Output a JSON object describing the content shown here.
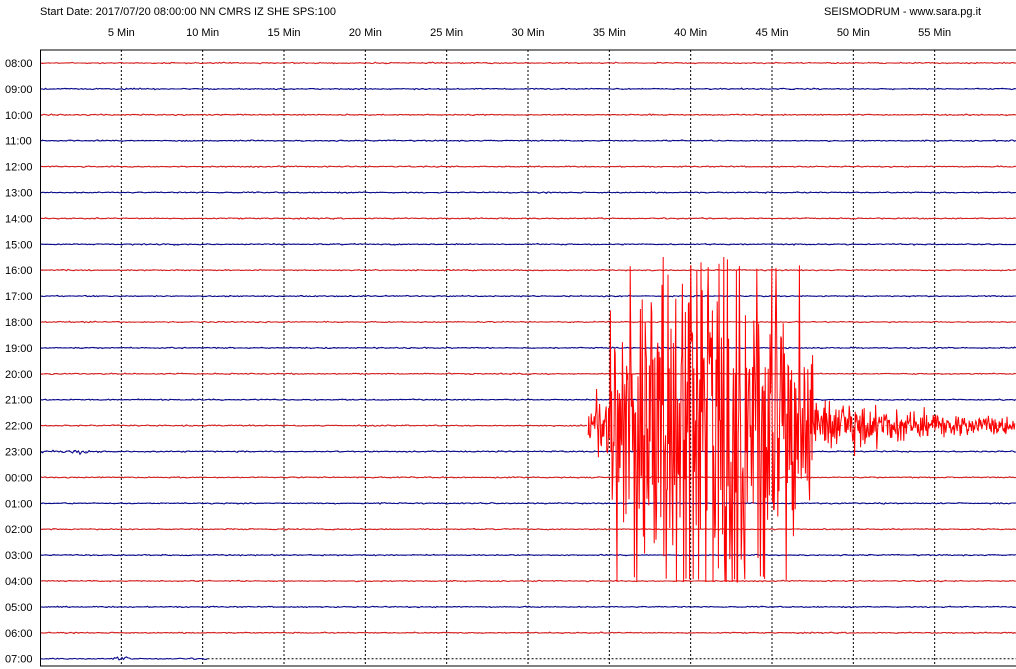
{
  "header": {
    "left": "Start Date: 2017/07/20 08:00:00 NN CMRS IZ SHE SPS:100",
    "right": "SEISMODRUM - www.sara.pg.it"
  },
  "colors": {
    "red": "#d42020",
    "blue": "#0a0a8c",
    "event": "#ff0000",
    "grid": "#000000"
  },
  "chart_data": {
    "type": "line",
    "title": "",
    "x_ticks": [
      "5 Min",
      "10 Min",
      "15 Min",
      "20 Min",
      "25 Min",
      "30 Min",
      "35 Min",
      "40 Min",
      "45 Min",
      "50 Min",
      "55 Min"
    ],
    "x_tick_minutes": [
      5,
      10,
      15,
      20,
      25,
      30,
      35,
      40,
      45,
      50,
      55
    ],
    "xlim": [
      0,
      60
    ],
    "rows": [
      "08:00",
      "09:00",
      "10:00",
      "11:00",
      "12:00",
      "13:00",
      "14:00",
      "15:00",
      "16:00",
      "17:00",
      "18:00",
      "19:00",
      "20:00",
      "21:00",
      "22:00",
      "23:00",
      "00:00",
      "01:00",
      "02:00",
      "03:00",
      "04:00",
      "05:00",
      "06:00",
      "07:00"
    ],
    "row_colors": [
      "red",
      "blue",
      "red",
      "blue",
      "red",
      "blue",
      "red",
      "blue",
      "red",
      "blue",
      "red",
      "blue",
      "red",
      "blue",
      "red",
      "blue",
      "red",
      "blue",
      "red",
      "blue",
      "red",
      "blue",
      "red",
      "blue"
    ],
    "last_row_end_minute": 10.3,
    "event": {
      "row": "22:00",
      "start_minute": 33.7,
      "strong_start_minute": 35.0,
      "strong_end_minute": 47.5,
      "end_minute": 60
    },
    "minor_bursts": [
      {
        "row": "23:00",
        "start_minute": 0,
        "end_minute": 3.8
      },
      {
        "row": "07:00",
        "start_minute": 4.5,
        "end_minute": 5.5
      }
    ]
  }
}
